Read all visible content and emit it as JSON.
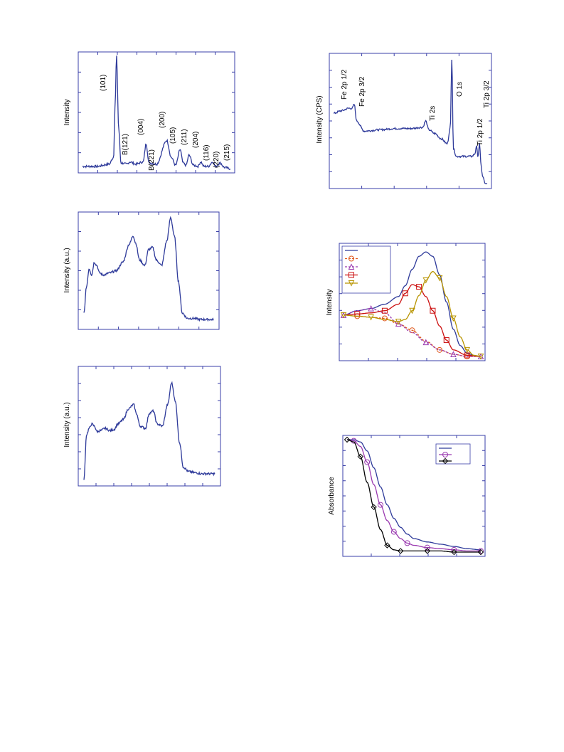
{
  "colors": {
    "frame": "#3a3fa8",
    "main_curve": "#2e3a9a",
    "orange": "#e05a1e",
    "purple": "#9a3ab0",
    "red": "#cc1111",
    "olive": "#b89400",
    "black": "#000000",
    "background": "#ffffff"
  },
  "chart_data": [
    {
      "id": "xrd",
      "type": "line",
      "ylabel": "Intensity",
      "peak_labels": [
        "(101)",
        "B(121)",
        "(004)",
        "B(221)",
        "(200)",
        "(105)",
        "(211)",
        "(204)",
        "(116)",
        "(220)",
        "(215)"
      ],
      "series": [
        {
          "x": [
            0,
            0.1,
            0.18,
            0.21,
            0.22,
            0.23,
            0.245,
            0.26,
            0.3,
            0.32,
            0.36,
            0.41,
            0.43,
            0.45,
            0.5,
            0.57,
            0.6,
            0.63,
            0.66,
            0.68,
            0.7,
            0.72,
            0.75,
            0.78,
            0.8,
            0.82,
            0.85,
            0.88,
            0.9,
            0.93,
            0.96,
            1.0
          ],
          "y": [
            0.02,
            0.02,
            0.04,
            0.1,
            0.55,
            1.0,
            0.35,
            0.05,
            0.04,
            0.06,
            0.04,
            0.06,
            0.22,
            0.05,
            0.04,
            0.25,
            0.1,
            0.03,
            0.17,
            0.05,
            0.03,
            0.12,
            0.03,
            0.02,
            0.06,
            0.02,
            0.02,
            0.06,
            0.02,
            0.05,
            0.01,
            0.0
          ]
        }
      ]
    },
    {
      "id": "xps",
      "type": "line",
      "ylabel": "Intensity (CPS)",
      "peak_labels": [
        "Fe 2p 1/2",
        "Fe 2p 3/2",
        "Ti 2s",
        "O 1s",
        "Ti 2p 1/2",
        "Ti 2p 3/2"
      ],
      "series": [
        {
          "x": [
            0,
            0.05,
            0.1,
            0.12,
            0.135,
            0.15,
            0.2,
            0.3,
            0.4,
            0.5,
            0.58,
            0.6,
            0.62,
            0.66,
            0.7,
            0.74,
            0.76,
            0.77,
            0.78,
            0.8,
            0.85,
            0.9,
            0.92,
            0.93,
            0.94,
            0.95,
            0.96,
            0.97,
            0.99,
            1.0
          ],
          "y": [
            0.56,
            0.58,
            0.6,
            0.6,
            0.63,
            0.5,
            0.42,
            0.43,
            0.44,
            0.44,
            0.45,
            0.5,
            0.43,
            0.4,
            0.36,
            0.32,
            0.45,
            1.0,
            0.28,
            0.22,
            0.22,
            0.22,
            0.24,
            0.3,
            0.22,
            0.32,
            0.15,
            0.06,
            0.0,
            0.0
          ]
        }
      ]
    },
    {
      "id": "spectrum_mid",
      "type": "line",
      "ylabel": "Intensity (a.u.)",
      "series": [
        {
          "x": [
            0,
            0.02,
            0.04,
            0.06,
            0.08,
            0.1,
            0.12,
            0.15,
            0.2,
            0.25,
            0.3,
            0.35,
            0.38,
            0.4,
            0.43,
            0.47,
            0.5,
            0.53,
            0.56,
            0.6,
            0.64,
            0.67,
            0.7,
            0.73,
            0.76,
            0.8,
            0.85,
            0.9,
            1.0
          ],
          "y": [
            0.1,
            0.35,
            0.52,
            0.46,
            0.58,
            0.55,
            0.48,
            0.46,
            0.48,
            0.5,
            0.58,
            0.75,
            0.83,
            0.76,
            0.6,
            0.55,
            0.7,
            0.72,
            0.6,
            0.55,
            0.78,
            1.0,
            0.82,
            0.4,
            0.1,
            0.05,
            0.05,
            0.04,
            0.04
          ]
        }
      ]
    },
    {
      "id": "spectrum_bottom",
      "type": "line",
      "ylabel": "Intensity (a.u.)",
      "series": [
        {
          "x": [
            0,
            0.02,
            0.04,
            0.06,
            0.08,
            0.1,
            0.13,
            0.16,
            0.2,
            0.23,
            0.26,
            0.3,
            0.34,
            0.38,
            0.4,
            0.43,
            0.47,
            0.5,
            0.53,
            0.56,
            0.6,
            0.64,
            0.67,
            0.7,
            0.73,
            0.76,
            0.8,
            0.85,
            0.9,
            1.0
          ],
          "y": [
            0.0,
            0.42,
            0.48,
            0.52,
            0.5,
            0.45,
            0.46,
            0.48,
            0.46,
            0.47,
            0.52,
            0.56,
            0.66,
            0.7,
            0.62,
            0.5,
            0.48,
            0.62,
            0.64,
            0.52,
            0.5,
            0.7,
            0.9,
            0.72,
            0.35,
            0.12,
            0.08,
            0.07,
            0.06,
            0.06
          ]
        }
      ]
    },
    {
      "id": "intensity_overlay",
      "type": "line",
      "ylabel": "Intensity",
      "legend_placement": "top-left",
      "legend_entries": 5,
      "series": [
        {
          "marker": "none",
          "color_key": "main_curve",
          "x": [
            0,
            0.1,
            0.2,
            0.3,
            0.4,
            0.45,
            0.5,
            0.55,
            0.6,
            0.65,
            0.7,
            0.75,
            0.8,
            0.85,
            0.9,
            0.95,
            1.0
          ],
          "y": [
            0.38,
            0.42,
            0.44,
            0.48,
            0.55,
            0.65,
            0.8,
            0.92,
            0.96,
            0.92,
            0.75,
            0.5,
            0.25,
            0.1,
            0.03,
            0.01,
            0.0
          ]
        },
        {
          "marker": "circle",
          "color_key": "orange",
          "x": [
            0,
            0.1,
            0.2,
            0.3,
            0.4,
            0.5,
            0.6,
            0.7,
            0.8,
            0.9,
            1.0
          ],
          "y": [
            0.38,
            0.37,
            0.36,
            0.35,
            0.3,
            0.24,
            0.14,
            0.06,
            0.02,
            0.0,
            0.0
          ]
        },
        {
          "marker": "triangle-up",
          "color_key": "purple",
          "x": [
            0,
            0.1,
            0.2,
            0.3,
            0.4,
            0.5,
            0.6,
            0.7,
            0.8,
            0.9,
            1.0
          ],
          "y": [
            0.38,
            0.42,
            0.44,
            0.4,
            0.3,
            0.22,
            0.13,
            0.06,
            0.02,
            0.0,
            0.0
          ]
        },
        {
          "marker": "square",
          "color_key": "red",
          "x": [
            0,
            0.1,
            0.2,
            0.3,
            0.4,
            0.45,
            0.5,
            0.55,
            0.6,
            0.65,
            0.7,
            0.75,
            0.8,
            0.9,
            1.0
          ],
          "y": [
            0.38,
            0.39,
            0.4,
            0.42,
            0.48,
            0.58,
            0.66,
            0.64,
            0.55,
            0.42,
            0.28,
            0.15,
            0.06,
            0.01,
            0.0
          ]
        },
        {
          "marker": "triangle-down",
          "color_key": "olive",
          "x": [
            0,
            0.1,
            0.2,
            0.3,
            0.4,
            0.45,
            0.5,
            0.55,
            0.6,
            0.65,
            0.7,
            0.75,
            0.8,
            0.85,
            0.9,
            0.95,
            1.0
          ],
          "y": [
            0.38,
            0.37,
            0.36,
            0.34,
            0.32,
            0.34,
            0.42,
            0.56,
            0.7,
            0.78,
            0.72,
            0.55,
            0.35,
            0.18,
            0.06,
            0.01,
            0.0
          ]
        }
      ]
    },
    {
      "id": "absorbance",
      "type": "line",
      "ylabel": "Absorbance",
      "legend_placement": "top-right",
      "legend_entries": 3,
      "series": [
        {
          "marker": "none",
          "color_key": "main_curve",
          "x": [
            0,
            0.05,
            0.1,
            0.15,
            0.2,
            0.25,
            0.3,
            0.35,
            0.4,
            0.45,
            0.5,
            0.6,
            0.7,
            0.8,
            0.9,
            1.0
          ],
          "y": [
            1.0,
            1.0,
            0.98,
            0.9,
            0.75,
            0.58,
            0.42,
            0.3,
            0.22,
            0.16,
            0.12,
            0.09,
            0.07,
            0.05,
            0.03,
            0.02
          ]
        },
        {
          "marker": "circle",
          "color_key": "purple",
          "x": [
            0,
            0.05,
            0.1,
            0.15,
            0.2,
            0.25,
            0.3,
            0.35,
            0.4,
            0.45,
            0.5,
            0.6,
            0.7,
            0.8,
            0.9,
            1.0
          ],
          "y": [
            1.0,
            0.99,
            0.94,
            0.8,
            0.6,
            0.42,
            0.28,
            0.18,
            0.12,
            0.08,
            0.06,
            0.04,
            0.03,
            0.02,
            0.01,
            0.01
          ]
        },
        {
          "marker": "diamond",
          "color_key": "black",
          "x": [
            0,
            0.05,
            0.1,
            0.15,
            0.2,
            0.25,
            0.3,
            0.35,
            0.4,
            0.5,
            0.6,
            0.7,
            0.8,
            0.9,
            1.0
          ],
          "y": [
            1.0,
            0.98,
            0.85,
            0.62,
            0.4,
            0.2,
            0.06,
            0.02,
            0.01,
            0.01,
            0.01,
            0.01,
            0.0,
            0.0,
            0.0
          ]
        }
      ]
    }
  ]
}
